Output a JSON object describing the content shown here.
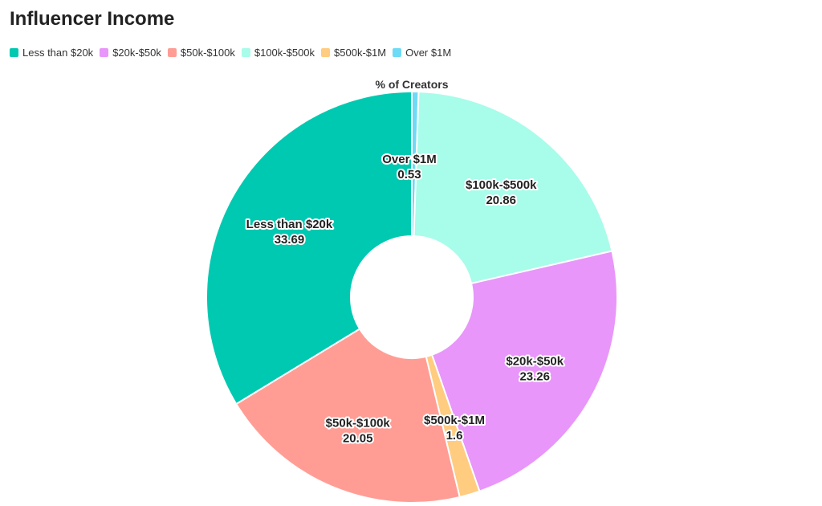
{
  "chart_data": {
    "type": "pie",
    "title": "Influencer Income",
    "series_name": "% of Creators",
    "legend_position": "top-left",
    "categories": [
      "Less than $20k",
      "$20k-$50k",
      "$50k-$100k",
      "$100k-$500k",
      "$500k-$1M",
      "Over $1M"
    ],
    "values": [
      33.69,
      23.26,
      20.05,
      20.86,
      1.6,
      0.53
    ],
    "colors": [
      "#00c9b1",
      "#e896fa",
      "#ff9d95",
      "#a8fcea",
      "#ffcc80",
      "#6ddaf6"
    ],
    "slice_order": [
      "Over $1M",
      "$100k-$500k",
      "$20k-$50k",
      "$500k-$1M",
      "$50k-$100k",
      "Less than $20k"
    ]
  }
}
